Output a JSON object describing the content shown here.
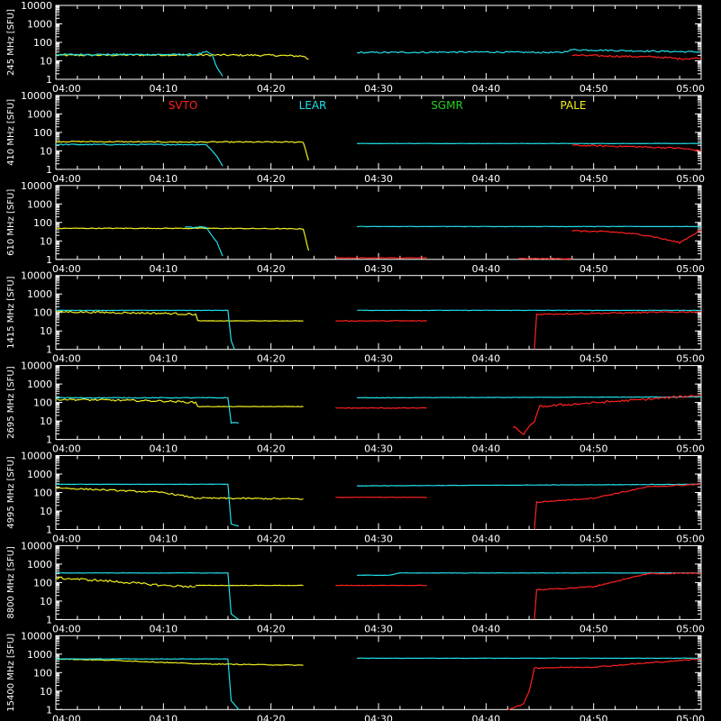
{
  "chart_data": {
    "type": "line",
    "panel_count": 8,
    "y_scale": "log",
    "ylim": [
      1,
      10000
    ],
    "y_ticks": [
      1,
      10,
      100,
      1000,
      10000
    ],
    "y_tick_labels": [
      "1",
      "10",
      "100",
      "1000",
      "10000"
    ],
    "x_range_minutes": [
      240,
      300
    ],
    "x_ticks": [
      240,
      250,
      260,
      270,
      280,
      290,
      300
    ],
    "x_tick_labels": [
      "04:00",
      "04:10",
      "04:20",
      "04:30",
      "04:40",
      "04:50",
      "05:00"
    ],
    "legend": {
      "placement": "top of panel 2",
      "entries": [
        {
          "name": "SVTO",
          "color": "#ff2020"
        },
        {
          "name": "LEAR",
          "color": "#20e0e8"
        },
        {
          "name": "SGMR",
          "color": "#20d020"
        },
        {
          "name": "PALE",
          "color": "#f0f020"
        }
      ]
    },
    "panels": [
      {
        "ylabel": "245 MHz [SFU]",
        "series": [
          {
            "name": "PALE",
            "color": "#f0f020",
            "segments": [
              {
                "x": [
                  240,
                  250,
                  260,
                  263,
                  263.5
                ],
                "y": [
                  20,
                  21,
                  20,
                  18,
                  12
                ],
                "noise": 0.05
              }
            ]
          },
          {
            "name": "LEAR",
            "color": "#20e0e8",
            "segments": [
              {
                "x": [
                  240,
                  245,
                  253,
                  254,
                  254.5,
                  255,
                  255.5
                ],
                "y": [
                  22,
                  22,
                  22,
                  30,
                  22,
                  4,
                  1.5
                ],
                "noise": 0.04
              },
              {
                "x": [
                  268,
                  280,
                  287,
                  288,
                  300
                ],
                "y": [
                  28,
                  30,
                  28,
                  40,
                  30
                ],
                "noise": 0.04
              }
            ]
          },
          {
            "name": "SVTO",
            "color": "#ff2020",
            "segments": [
              {
                "x": [
                  288,
                  292,
                  296,
                  298,
                  300
                ],
                "y": [
                  20,
                  18,
                  16,
                  13,
                  14
                ],
                "noise": 0.05
              }
            ]
          }
        ]
      },
      {
        "ylabel": "410 MHz [SFU]",
        "series": [
          {
            "name": "PALE",
            "color": "#f0f020",
            "segments": [
              {
                "x": [
                  240,
                  252,
                  254,
                  263,
                  263.5
                ],
                "y": [
                  32,
                  30,
                  30,
                  30,
                  3
                ],
                "noise": 0.03
              }
            ]
          },
          {
            "name": "LEAR",
            "color": "#20e0e8",
            "segments": [
              {
                "x": [
                  240,
                  253,
                  254,
                  255,
                  255.5
                ],
                "y": [
                  22,
                  22,
                  22,
                  5,
                  1.5
                ],
                "noise": 0.03
              },
              {
                "x": [
                  268,
                  288,
                  300
                ],
                "y": [
                  25,
                  25,
                  25
                ],
                "noise": 0.01
              }
            ]
          },
          {
            "name": "SVTO",
            "color": "#ff2020",
            "segments": [
              {
                "x": [
                  288,
                  292,
                  295,
                  298,
                  300
                ],
                "y": [
                  20,
                  18,
                  16,
                  14,
                  10
                ],
                "noise": 0.04
              }
            ]
          }
        ]
      },
      {
        "ylabel": "610 MHz [SFU]",
        "series": [
          {
            "name": "PALE",
            "color": "#f0f020",
            "segments": [
              {
                "x": [
                  240,
                  254,
                  263,
                  263.5
                ],
                "y": [
                  48,
                  48,
                  45,
                  3
                ],
                "noise": 0.02
              }
            ]
          },
          {
            "name": "LEAR",
            "color": "#20e0e8",
            "segments": [
              {
                "x": [
                  252,
                  254,
                  255,
                  255.5
                ],
                "y": [
                  55,
                  55,
                  8,
                  1.5
                ],
                "noise": 0.03
              },
              {
                "x": [
                  268,
                  300
                ],
                "y": [
                  60,
                  60
                ],
                "noise": 0.01
              }
            ]
          },
          {
            "name": "SVTO",
            "color": "#ff2020",
            "segments": [
              {
                "x": [
                  266,
                  274.5
                ],
                "y": [
                  1.2,
                  1.2
                ],
                "noise": 0.02
              },
              {
                "x": [
                  283,
                  288
                ],
                "y": [
                  1.1,
                  1.1
                ],
                "noise": 0.02
              },
              {
                "x": [
                  288,
                  292,
                  295,
                  298,
                  300
                ],
                "y": [
                  35,
                  30,
                  20,
                  8,
                  40
                ],
                "noise": 0.04
              }
            ]
          }
        ]
      },
      {
        "ylabel": "1415 MHz [SFU]",
        "series": [
          {
            "name": "PALE",
            "color": "#f0f020",
            "segments": [
              {
                "x": [
                  240,
                  250,
                  253,
                  253.2
                ],
                "y": [
                  110,
                  90,
                  80,
                  35
                ],
                "noise": 0.05
              },
              {
                "x": [
                  253.2,
                  263
                ],
                "y": [
                  35,
                  35
                ],
                "noise": 0.01
              }
            ]
          },
          {
            "name": "LEAR",
            "color": "#20e0e8",
            "segments": [
              {
                "x": [
                  240,
                  256,
                  256.3,
                  256.6
                ],
                "y": [
                  130,
                  130,
                  3,
                  1
                ],
                "noise": 0.01
              },
              {
                "x": [
                  268,
                  300
                ],
                "y": [
                  130,
                  130
                ],
                "noise": 0.01
              }
            ]
          },
          {
            "name": "SVTO",
            "color": "#ff2020",
            "segments": [
              {
                "x": [
                  266,
                  274.5
                ],
                "y": [
                  35,
                  35
                ],
                "noise": 0.02
              },
              {
                "x": [
                  284.5,
                  284.7,
                  290,
                  300
                ],
                "y": [
                  1,
                  80,
                  90,
                  110
                ],
                "noise": 0.04
              }
            ]
          }
        ]
      },
      {
        "ylabel": "2695 MHz [SFU]",
        "series": [
          {
            "name": "PALE",
            "color": "#f0f020",
            "segments": [
              {
                "x": [
                  240,
                  250,
                  253,
                  253.2
                ],
                "y": [
                  150,
                  120,
                  100,
                  60
                ],
                "noise": 0.05
              },
              {
                "x": [
                  253.2,
                  263
                ],
                "y": [
                  60,
                  60
                ],
                "noise": 0.01
              }
            ]
          },
          {
            "name": "LEAR",
            "color": "#20e0e8",
            "segments": [
              {
                "x": [
                  240,
                  256,
                  256.3,
                  257
                ],
                "y": [
                  180,
                  180,
                  8,
                  8
                ],
                "noise": 0.02
              },
              {
                "x": [
                  268,
                  300
                ],
                "y": [
                  180,
                  200
                ],
                "noise": 0.01
              }
            ]
          },
          {
            "name": "SVTO",
            "color": "#ff2020",
            "segments": [
              {
                "x": [
                  266,
                  274.5
                ],
                "y": [
                  50,
                  50
                ],
                "noise": 0.02
              },
              {
                "x": [
                  282.5,
                  283.5,
                  284.5,
                  285,
                  288,
                  295,
                  300
                ],
                "y": [
                  5,
                  2,
                  10,
                  60,
                  80,
                  150,
                  250
                ],
                "noise": 0.06
              }
            ]
          }
        ]
      },
      {
        "ylabel": "4995 MHz [SFU]",
        "series": [
          {
            "name": "PALE",
            "color": "#f0f020",
            "segments": [
              {
                "x": [
                  240,
                  250,
                  253,
                  263
                ],
                "y": [
                  180,
                  100,
                  50,
                  45
                ],
                "noise": 0.04
              }
            ]
          },
          {
            "name": "LEAR",
            "color": "#20e0e8",
            "segments": [
              {
                "x": [
                  240,
                  256,
                  256.3,
                  257
                ],
                "y": [
                  280,
                  280,
                  2,
                  1.5
                ],
                "noise": 0.01
              },
              {
                "x": [
                  268,
                  300
                ],
                "y": [
                  230,
                  280
                ],
                "noise": 0.01
              }
            ]
          },
          {
            "name": "SVTO",
            "color": "#ff2020",
            "segments": [
              {
                "x": [
                  266,
                  274.5
                ],
                "y": [
                  55,
                  55
                ],
                "noise": 0.01
              },
              {
                "x": [
                  284.5,
                  284.7,
                  290,
                  295,
                  300
                ],
                "y": [
                  1,
                  30,
                  50,
                  200,
                  280
                ],
                "noise": 0.03
              }
            ]
          }
        ]
      },
      {
        "ylabel": "8800 MHz [SFU]",
        "series": [
          {
            "name": "PALE",
            "color": "#f0f020",
            "segments": [
              {
                "x": [
                  240,
                  245,
                  250,
                  253
                ],
                "y": [
                  180,
                  120,
                  70,
                  60
                ],
                "noise": 0.06
              },
              {
                "x": [
                  253,
                  263
                ],
                "y": [
                  70,
                  70
                ],
                "noise": 0.01
              }
            ]
          },
          {
            "name": "LEAR",
            "color": "#20e0e8",
            "segments": [
              {
                "x": [
                  240,
                  256,
                  256.3,
                  257
                ],
                "y": [
                  330,
                  330,
                  2,
                  1
                ],
                "noise": 0.01
              },
              {
                "x": [
                  268,
                  271,
                  272,
                  300
                ],
                "y": [
                  250,
                  250,
                  330,
                  330
                ],
                "noise": 0.01
              }
            ]
          },
          {
            "name": "SVTO",
            "color": "#ff2020",
            "segments": [
              {
                "x": [
                  266,
                  274.5
                ],
                "y": [
                  70,
                  70
                ],
                "noise": 0.01
              },
              {
                "x": [
                  284.5,
                  284.7,
                  290,
                  295,
                  300
                ],
                "y": [
                  1,
                  40,
                  60,
                  300,
                  330
                ],
                "noise": 0.03
              }
            ]
          }
        ]
      },
      {
        "ylabel": "15400 MHz [SFU]",
        "series": [
          {
            "name": "PALE",
            "color": "#f0f020",
            "segments": [
              {
                "x": [
                  240,
                  246,
                  253,
                  263
                ],
                "y": [
                  550,
                  450,
                  300,
                  250
                ],
                "noise": 0.02
              }
            ]
          },
          {
            "name": "LEAR",
            "color": "#20e0e8",
            "segments": [
              {
                "x": [
                  240,
                  256,
                  256.3,
                  257
                ],
                "y": [
                  550,
                  550,
                  3,
                  1
                ],
                "noise": 0.01
              },
              {
                "x": [
                  268,
                  300
                ],
                "y": [
                  600,
                  600
                ],
                "noise": 0.01
              }
            ]
          },
          {
            "name": "SVTO",
            "color": "#ff2020",
            "segments": [
              {
                "x": [
                  282,
                  283.5,
                  284,
                  284.5,
                  290,
                  300
                ],
                "y": [
                  1,
                  2,
                  10,
                  180,
                  200,
                  550
                ],
                "noise": 0.03
              }
            ]
          }
        ]
      }
    ]
  }
}
